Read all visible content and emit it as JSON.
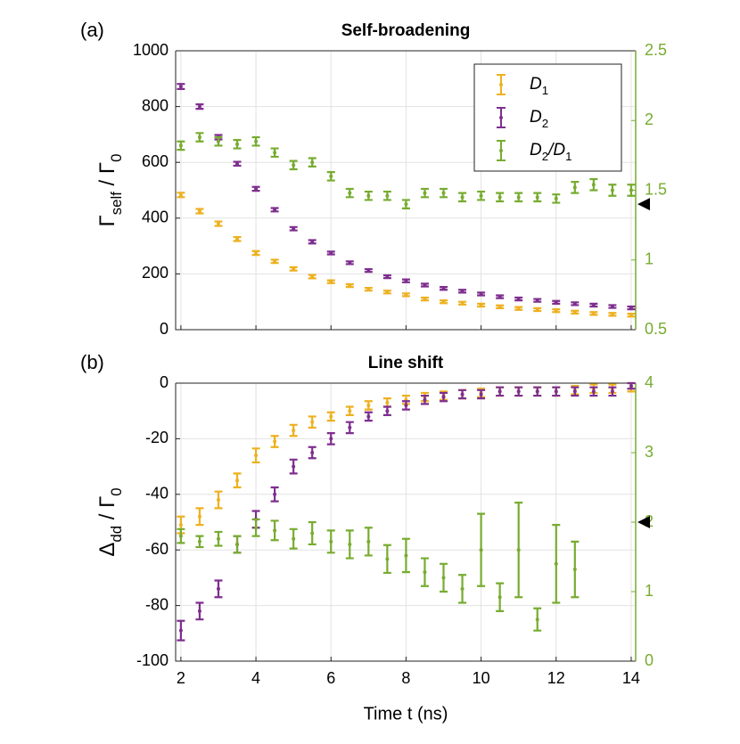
{
  "chart_data": [
    {
      "type": "errorbar",
      "panel_label": "(a)",
      "title": "Self-broadening",
      "ylabel": [
        "Γ",
        "self",
        " / Γ",
        "0"
      ],
      "x": [
        2,
        2.5,
        3,
        3.5,
        4,
        4.5,
        5,
        5.5,
        6,
        6.5,
        7,
        7.5,
        8,
        8.5,
        9,
        9.5,
        10,
        10.5,
        11,
        11.5,
        12,
        12.5,
        13,
        13.5,
        14
      ],
      "xlim": [
        1.86,
        14.12
      ],
      "xticks": [
        2,
        4,
        6,
        8,
        10,
        12,
        14
      ],
      "xticklabels": false,
      "ylim": [
        0,
        1000
      ],
      "yticks": [
        0,
        200,
        400,
        600,
        800,
        1000
      ],
      "y2lim": [
        0.5,
        2.5
      ],
      "y2ticks": [
        0.5,
        1,
        1.5,
        2,
        2.5
      ],
      "y2color": "#77AC30",
      "y2markers": [
        1.4
      ],
      "grid": true,
      "legend": "top-right",
      "series": [
        {
          "name": [
            "D",
            "1"
          ],
          "color": "#EDB120",
          "values": [
            483,
            425,
            380,
            325,
            275,
            245,
            218,
            190,
            172,
            158,
            145,
            135,
            125,
            110,
            100,
            95,
            88,
            82,
            76,
            72,
            68,
            63,
            58,
            55,
            52
          ],
          "errors": [
            8,
            8,
            8,
            7,
            7,
            6,
            6,
            6,
            5,
            5,
            5,
            5,
            5,
            5,
            5,
            5,
            5,
            5,
            5,
            5,
            5,
            5,
            5,
            5,
            5
          ]
        },
        {
          "name": [
            "D",
            "2"
          ],
          "color": "#7E2F8E",
          "values": [
            872,
            800,
            690,
            595,
            505,
            430,
            362,
            315,
            275,
            240,
            212,
            190,
            175,
            160,
            148,
            138,
            128,
            118,
            110,
            105,
            98,
            93,
            88,
            83,
            78
          ],
          "errors": [
            9,
            8,
            8,
            7,
            7,
            6,
            6,
            6,
            5,
            5,
            5,
            5,
            5,
            5,
            5,
            5,
            5,
            5,
            5,
            5,
            5,
            5,
            5,
            5,
            5
          ]
        },
        {
          "name": [
            "D",
            "2",
            "/D",
            "1"
          ],
          "color": "#77AC30",
          "axis": "y2",
          "values": [
            1.82,
            1.88,
            1.85,
            1.83,
            1.85,
            1.77,
            1.68,
            1.7,
            1.6,
            1.48,
            1.46,
            1.46,
            1.4,
            1.48,
            1.48,
            1.45,
            1.46,
            1.45,
            1.45,
            1.45,
            1.44,
            1.52,
            1.54,
            1.5,
            1.5
          ],
          "errors": [
            0.03,
            0.03,
            0.03,
            0.03,
            0.03,
            0.03,
            0.03,
            0.03,
            0.03,
            0.03,
            0.03,
            0.03,
            0.03,
            0.03,
            0.03,
            0.03,
            0.03,
            0.03,
            0.03,
            0.03,
            0.03,
            0.04,
            0.04,
            0.04,
            0.04
          ]
        }
      ]
    },
    {
      "type": "errorbar",
      "panel_label": "(b)",
      "title": "Line shift",
      "ylabel": [
        "Δ",
        "dd",
        " / Γ",
        "0"
      ],
      "xlabel": "Time t (ns)",
      "x": [
        2,
        2.5,
        3,
        3.5,
        4,
        4.5,
        5,
        5.5,
        6,
        6.5,
        7,
        7.5,
        8,
        8.5,
        9,
        9.5,
        10,
        10.5,
        11,
        11.5,
        12,
        12.5,
        13,
        13.5,
        14
      ],
      "xlim": [
        1.86,
        14.12
      ],
      "xticks": [
        2,
        4,
        6,
        8,
        10,
        12,
        14
      ],
      "xticklabels": true,
      "ylim": [
        -100,
        0
      ],
      "yticks": [
        -100,
        -80,
        -60,
        -40,
        -20,
        0
      ],
      "y2lim": [
        0,
        4
      ],
      "y2ticks": [
        0,
        1,
        2,
        3,
        4
      ],
      "y2color": "#77AC30",
      "y2markers": [
        2
      ],
      "grid": true,
      "series": [
        {
          "name": [
            "D",
            "1"
          ],
          "color": "#EDB120",
          "values": [
            -51,
            -48,
            -42,
            -35,
            -26,
            -21,
            -17,
            -14,
            -12,
            -10,
            -8,
            -7,
            -6,
            -5,
            -4.5,
            -4,
            -3.5,
            -3,
            -3,
            -3,
            -3,
            -2.5,
            -2,
            -2,
            -1.5
          ],
          "errors": [
            3,
            3,
            3,
            2.5,
            2.5,
            2,
            2,
            2,
            1.5,
            1.5,
            1.5,
            1.5,
            1.5,
            1.5,
            1.5,
            1.5,
            1.5,
            1.5,
            1.5,
            1.5,
            1.5,
            1.5,
            1.5,
            1.5,
            1.5
          ]
        },
        {
          "name": [
            "D",
            "2"
          ],
          "color": "#7E2F8E",
          "values": [
            -89,
            -82,
            -74,
            -58,
            -49,
            -40,
            -30,
            -25,
            -20,
            -16,
            -12,
            -10,
            -8,
            -6,
            -5,
            -4,
            -4,
            -3,
            -3,
            -3,
            -3,
            -3,
            -3,
            -3,
            -1
          ],
          "errors": [
            3.5,
            3,
            3,
            3,
            3,
            2.5,
            2.5,
            2,
            2,
            2,
            1.5,
            1.5,
            1.5,
            1.5,
            1.5,
            1.5,
            1.5,
            1.5,
            1.5,
            1.5,
            1.5,
            1.5,
            1.5,
            1.5,
            1
          ]
        },
        {
          "name": [
            "D",
            "2",
            "/D",
            "1"
          ],
          "color": "#77AC30",
          "axis": "y2",
          "values": [
            1.8,
            1.72,
            1.76,
            1.68,
            1.92,
            1.88,
            1.76,
            1.84,
            1.72,
            1.68,
            1.72,
            1.47,
            1.52,
            1.28,
            1.2,
            1.04,
            1.6,
            0.92,
            1.6,
            0.6,
            1.4,
            1.32,
            null,
            null,
            null
          ],
          "errors": [
            0.1,
            0.08,
            0.1,
            0.12,
            0.12,
            0.14,
            0.14,
            0.16,
            0.16,
            0.2,
            0.2,
            0.2,
            0.24,
            0.2,
            0.2,
            0.2,
            0.52,
            0.2,
            0.68,
            0.16,
            0.56,
            0.4,
            null,
            null,
            null
          ]
        }
      ]
    }
  ]
}
